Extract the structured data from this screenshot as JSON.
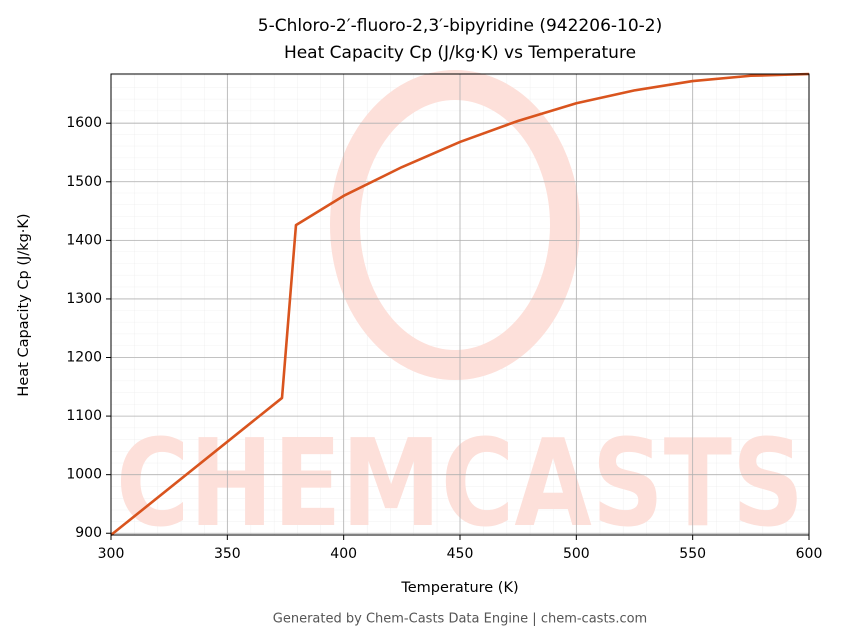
{
  "chart_data": {
    "type": "line",
    "title": "5-Chloro-2′-fluoro-2,3′-bipyridine (942206-10-2)",
    "subtitle": "Heat Capacity Cp (J/kg·K) vs Temperature",
    "x_label": "Temperature (K)",
    "y_label": "Heat Capacity Cp (J/kg·K)",
    "footer": "Generated by Chem-Casts Data Engine | chem-casts.com",
    "watermark": "CHEMCASTS",
    "x": [
      300,
      373.5,
      379.5,
      400,
      425,
      450,
      475,
      500,
      525,
      550,
      575,
      600
    ],
    "series": [
      {
        "name": "Heat Capacity Cp",
        "color": "#d9541e",
        "values": [
          897,
          1131,
          1426,
          1476,
          1525,
          1568,
          1604,
          1634,
          1656,
          1672,
          1681,
          1684
        ]
      }
    ],
    "xlim": [
      300,
      600
    ],
    "xticks": [
      300,
      350,
      400,
      450,
      500,
      550,
      600
    ],
    "ylim": [
      897,
      1684
    ],
    "yticks": [
      900,
      1000,
      1100,
      1200,
      1300,
      1400,
      1500,
      1600
    ],
    "grid": true
  }
}
